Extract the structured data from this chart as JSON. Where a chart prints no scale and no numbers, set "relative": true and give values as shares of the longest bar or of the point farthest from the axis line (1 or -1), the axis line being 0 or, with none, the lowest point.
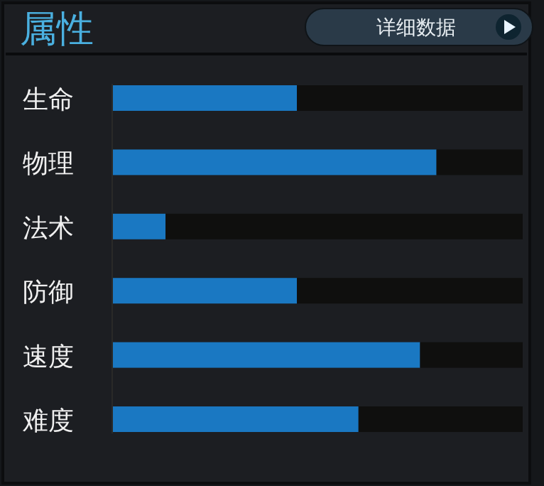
{
  "chart_data": {
    "type": "bar",
    "orientation": "horizontal",
    "relative": true,
    "stacked": true,
    "title": "属性",
    "annotations": [
      "详细数据"
    ],
    "categories": [
      "生命",
      "物理",
      "法术",
      "防御",
      "速度",
      "难度"
    ],
    "series": [
      {
        "color": "#1a78c2",
        "values": [
          0.45,
          0.79,
          0.13,
          0.45,
          0.75,
          0.6
        ]
      },
      {
        "color": "#0f0f0e",
        "values": [
          0.55,
          0.21,
          0.87,
          0.55,
          0.25,
          0.4
        ]
      }
    ]
  }
}
